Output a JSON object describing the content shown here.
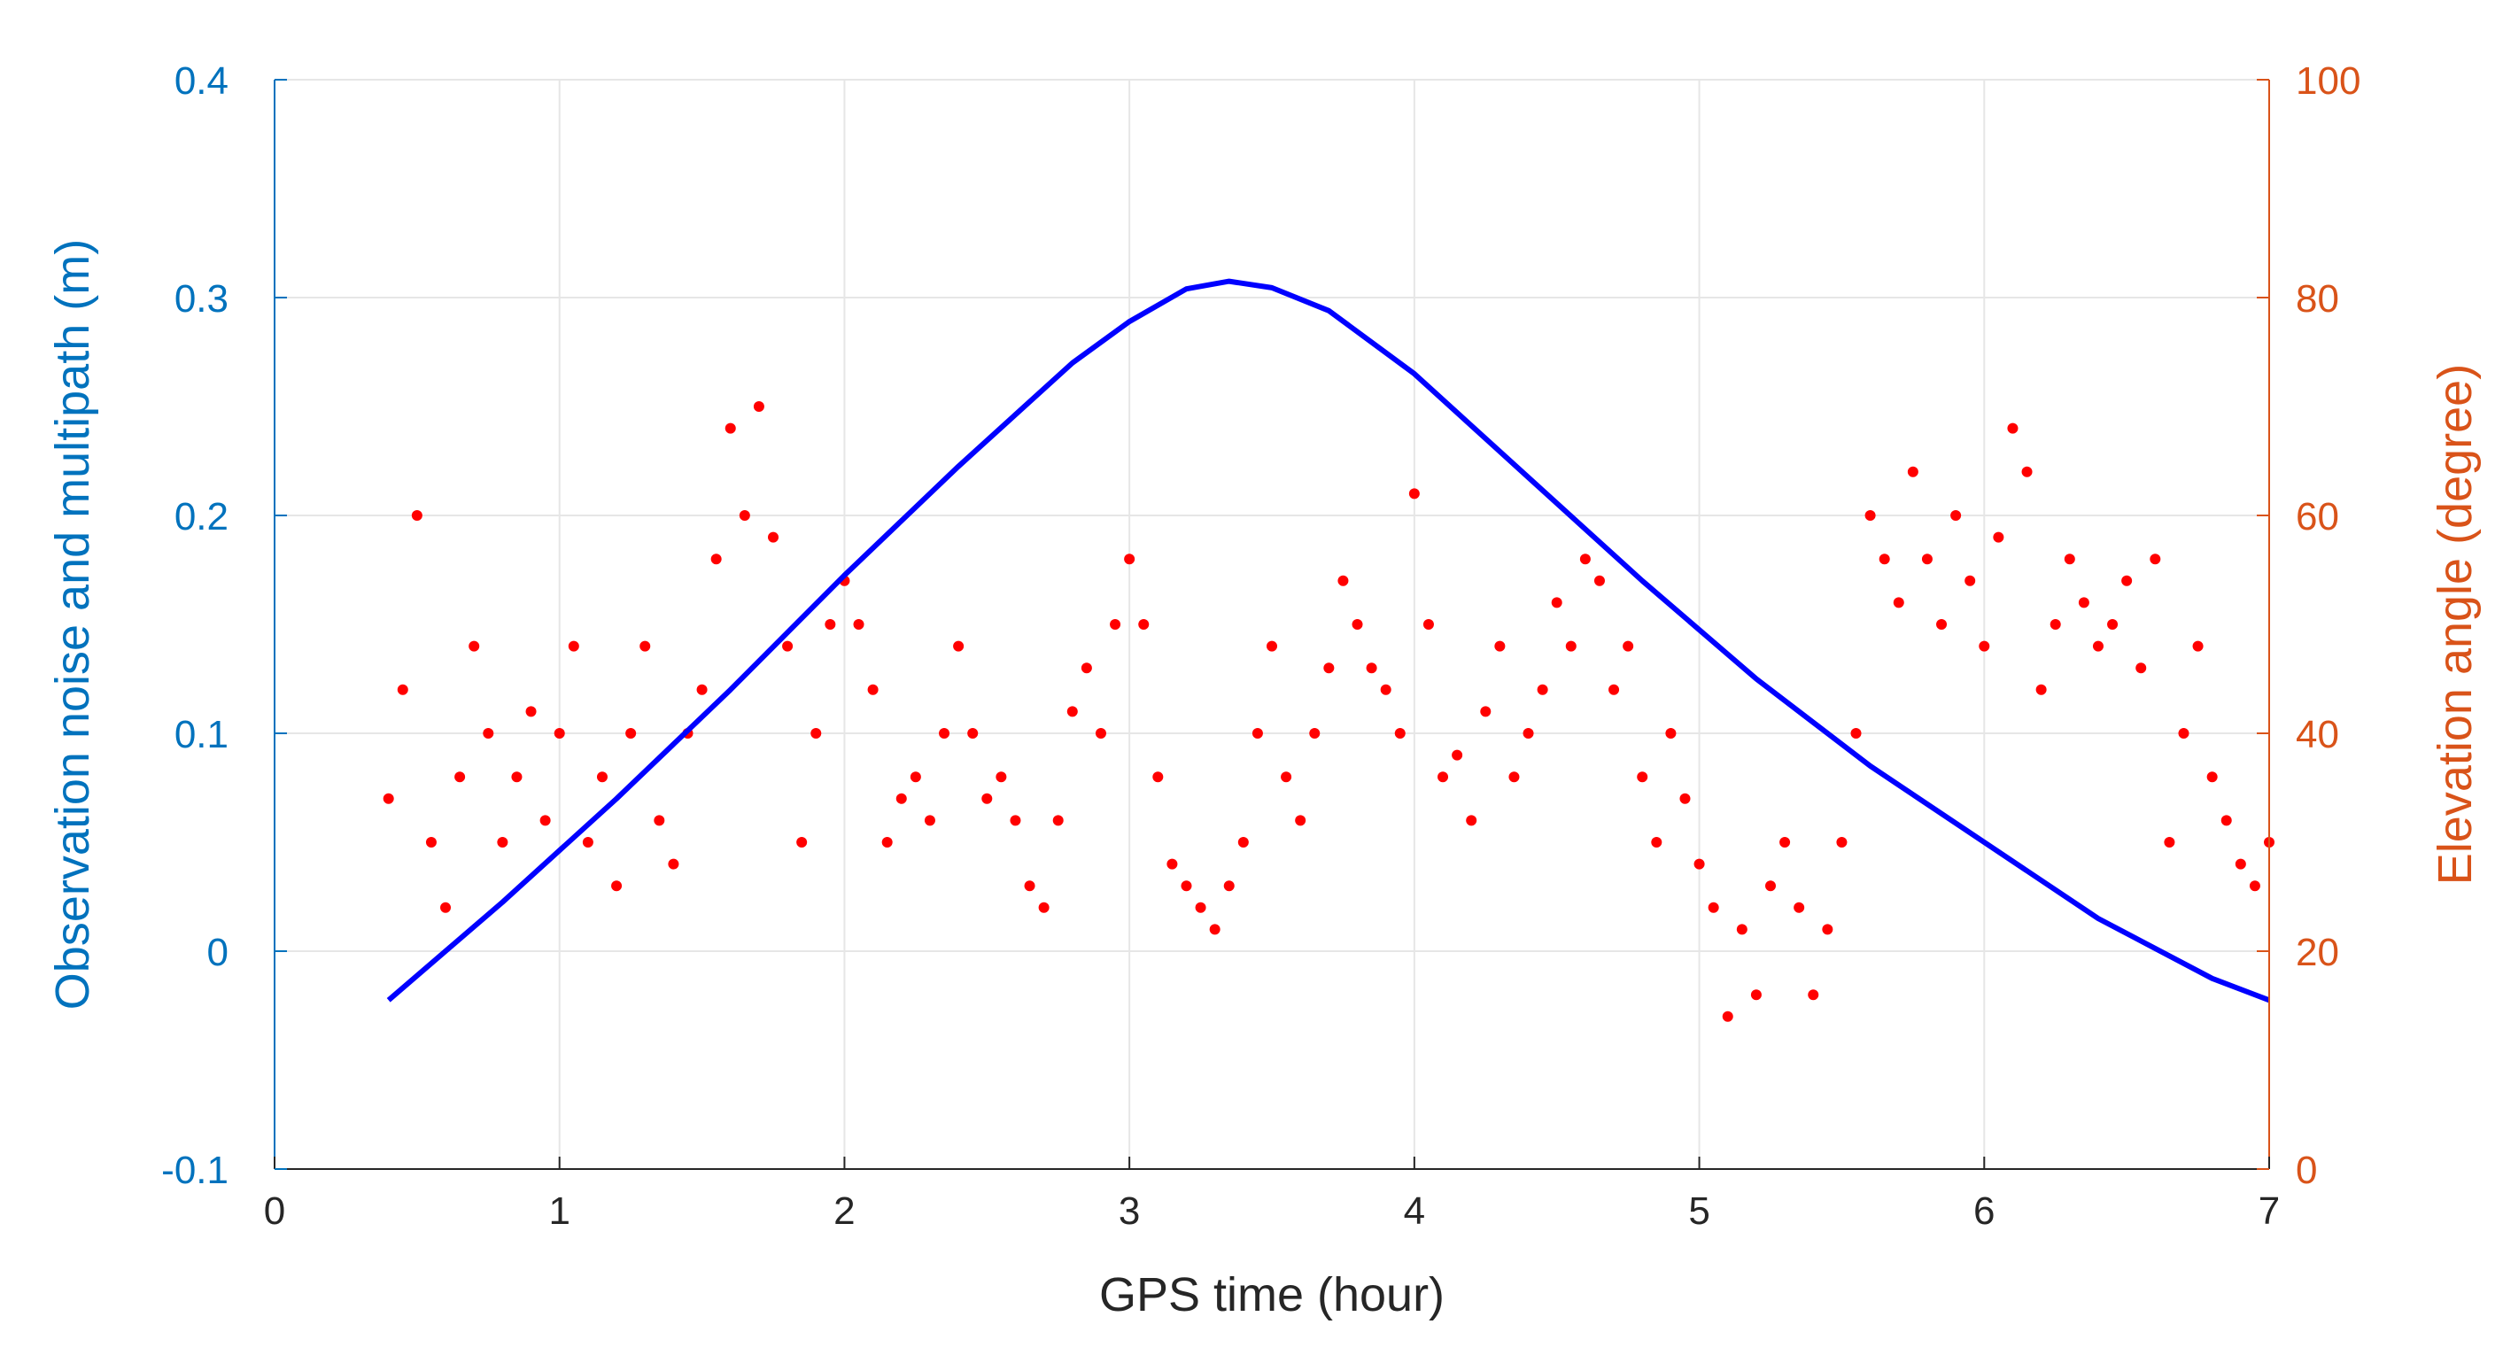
{
  "chart_data": {
    "type": "scatter",
    "title": "",
    "xlabel": "GPS time (hour)",
    "ylabel_left": "Observation noise and multipath (m)",
    "ylabel_right": "Elevation angle (degree)",
    "xlim": [
      0,
      7
    ],
    "ylim_left": [
      -0.1,
      0.4
    ],
    "ylim_right": [
      0,
      100
    ],
    "x_ticks": [
      "0",
      "1",
      "2",
      "3",
      "4",
      "5",
      "6",
      "7"
    ],
    "y_left_ticks": [
      "-0.1",
      "0",
      "0.1",
      "0.2",
      "0.3",
      "0.4"
    ],
    "y_right_ticks": [
      "0",
      "20",
      "40",
      "60",
      "80",
      "100"
    ],
    "grid": true,
    "legend": "none",
    "colors": {
      "left_axis": "#0072BD",
      "right_axis": "#D95319",
      "noise_points": "#FF0000",
      "elevation_line": "#0000FF",
      "grid": "#e6e6e6",
      "axis_line": "#262626"
    },
    "series": [
      {
        "axis": "right",
        "mark": "line",
        "x": [
          0.4,
          0.8,
          1.2,
          1.6,
          2.0,
          2.4,
          2.8,
          3.0,
          3.2,
          3.35,
          3.5,
          3.7,
          4.0,
          4.4,
          4.8,
          5.2,
          5.6,
          6.0,
          6.4,
          6.8,
          7.0
        ],
        "y": [
          15.5,
          24.5,
          34.0,
          44.0,
          54.5,
          64.5,
          74.0,
          77.8,
          80.8,
          81.5,
          80.9,
          78.8,
          73.0,
          63.5,
          54.0,
          45.0,
          37.0,
          30.0,
          23.0,
          17.5,
          15.5
        ]
      },
      {
        "axis": "left",
        "mark": "points",
        "x": [
          0.4,
          0.45,
          0.5,
          0.55,
          0.6,
          0.65,
          0.7,
          0.75,
          0.8,
          0.85,
          0.9,
          0.95,
          1.0,
          1.05,
          1.1,
          1.15,
          1.2,
          1.25,
          1.3,
          1.35,
          1.4,
          1.45,
          1.5,
          1.55,
          1.6,
          1.65,
          1.7,
          1.75,
          1.8,
          1.85,
          1.9,
          1.95,
          2.0,
          2.05,
          2.1,
          2.15,
          2.2,
          2.25,
          2.3,
          2.35,
          2.4,
          2.45,
          2.5,
          2.55,
          2.6,
          2.65,
          2.7,
          2.75,
          2.8,
          2.85,
          2.9,
          2.95,
          3.0,
          3.05,
          3.1,
          3.15,
          3.2,
          3.25,
          3.3,
          3.35,
          3.4,
          3.45,
          3.5,
          3.55,
          3.6,
          3.65,
          3.7,
          3.75,
          3.8,
          3.85,
          3.9,
          3.95,
          4.0,
          4.05,
          4.1,
          4.15,
          4.2,
          4.25,
          4.3,
          4.35,
          4.4,
          4.45,
          4.5,
          4.55,
          4.6,
          4.65,
          4.7,
          4.75,
          4.8,
          4.85,
          4.9,
          4.95,
          5.0,
          5.05,
          5.1,
          5.15,
          5.2,
          5.25,
          5.3,
          5.35,
          5.4,
          5.45,
          5.5,
          5.55,
          5.6,
          5.65,
          5.7,
          5.75,
          5.8,
          5.85,
          5.9,
          5.95,
          6.0,
          6.05,
          6.1,
          6.15,
          6.2,
          6.25,
          6.3,
          6.35,
          6.4,
          6.45,
          6.5,
          6.55,
          6.6,
          6.65,
          6.7,
          6.75,
          6.8,
          6.85,
          6.9,
          6.95,
          7.0
        ],
        "y": [
          0.07,
          0.12,
          0.2,
          0.05,
          0.02,
          0.08,
          0.14,
          0.1,
          0.05,
          0.08,
          0.11,
          0.06,
          0.1,
          0.14,
          0.05,
          0.08,
          0.03,
          0.1,
          0.14,
          0.06,
          0.04,
          0.1,
          0.12,
          0.18,
          0.24,
          0.2,
          0.25,
          0.19,
          0.14,
          0.05,
          0.1,
          0.15,
          0.17,
          0.15,
          0.12,
          0.05,
          0.07,
          0.08,
          0.06,
          0.1,
          0.14,
          0.1,
          0.07,
          0.08,
          0.06,
          0.03,
          0.02,
          0.06,
          0.11,
          0.13,
          0.1,
          0.15,
          0.18,
          0.15,
          0.08,
          0.04,
          0.03,
          0.02,
          0.01,
          0.03,
          0.05,
          0.1,
          0.14,
          0.08,
          0.06,
          0.1,
          0.13,
          0.17,
          0.15,
          0.13,
          0.12,
          0.1,
          0.21,
          0.15,
          0.08,
          0.09,
          0.06,
          0.11,
          0.14,
          0.08,
          0.1,
          0.12,
          0.16,
          0.14,
          0.18,
          0.17,
          0.12,
          0.14,
          0.08,
          0.05,
          0.1,
          0.07,
          0.04,
          0.02,
          -0.03,
          0.01,
          -0.02,
          0.03,
          0.05,
          0.02,
          -0.02,
          0.01,
          0.05,
          0.1,
          0.2,
          0.18,
          0.16,
          0.22,
          0.18,
          0.15,
          0.2,
          0.17,
          0.14,
          0.19,
          0.24,
          0.22,
          0.12,
          0.15,
          0.18,
          0.16,
          0.14,
          0.15,
          0.17,
          0.13,
          0.18,
          0.05,
          0.1,
          0.14,
          0.08,
          0.06,
          0.04,
          0.03,
          0.05
        ]
      }
    ]
  }
}
